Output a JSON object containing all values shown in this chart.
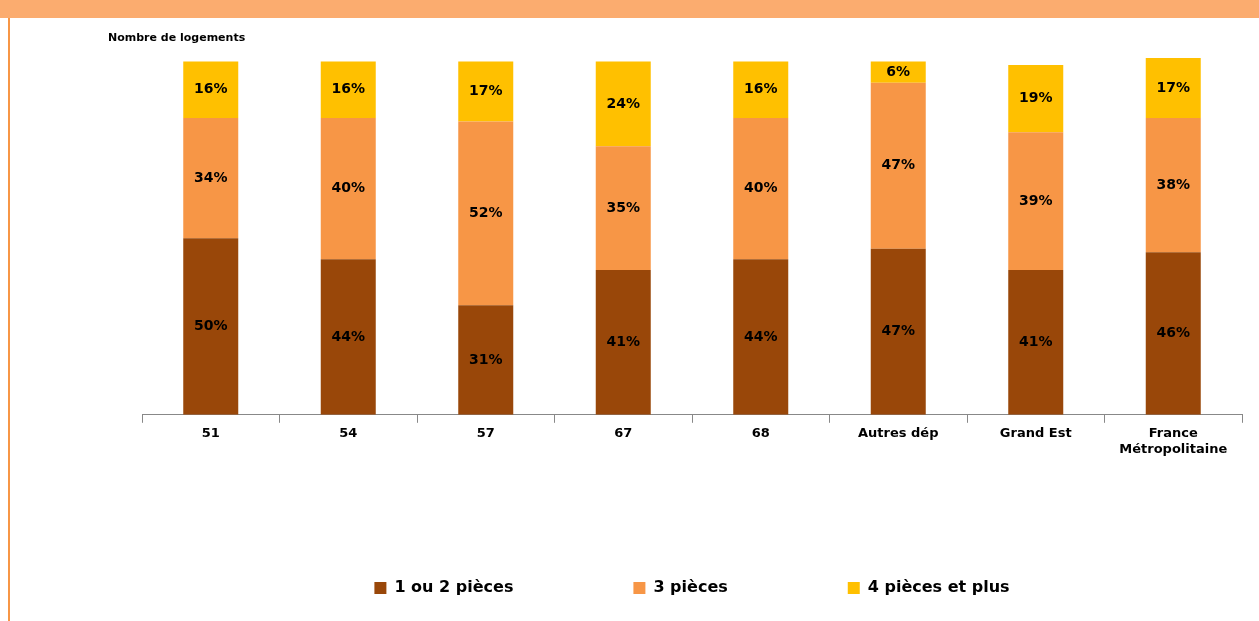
{
  "chart_data": {
    "type": "bar",
    "ylabel": "Nombre de logements",
    "stacked": true,
    "ylim": [
      0,
      101
    ],
    "tick_labels": "x",
    "legend": "bottom",
    "grid": false,
    "categories": [
      "51",
      "54",
      "57",
      "67",
      "68",
      "Autres dép",
      "Grand Est",
      "France Métropolitaine"
    ],
    "series": [
      {
        "name": "1 ou 2 pièces",
        "color": "#994709",
        "values": [
          50,
          44,
          31,
          41,
          44,
          47,
          41,
          46
        ],
        "value_labels": [
          "50%",
          "44%",
          "31%",
          "41%",
          "44%",
          "47%",
          "41%",
          "46%"
        ]
      },
      {
        "name": "3 pièces",
        "color": "#f79646",
        "values": [
          34,
          40,
          52,
          35,
          40,
          47,
          39,
          38
        ],
        "value_labels": [
          "34%",
          "40%",
          "52%",
          "35%",
          "40%",
          "47%",
          "39%",
          "38%"
        ]
      },
      {
        "name": "4 pièces et plus",
        "color": "#ffc000",
        "values": [
          16,
          16,
          17,
          24,
          16,
          6,
          19,
          17
        ],
        "value_labels": [
          "16%",
          "16%",
          "17%",
          "24%",
          "16%",
          "6%",
          "19%",
          "17%"
        ]
      }
    ]
  }
}
